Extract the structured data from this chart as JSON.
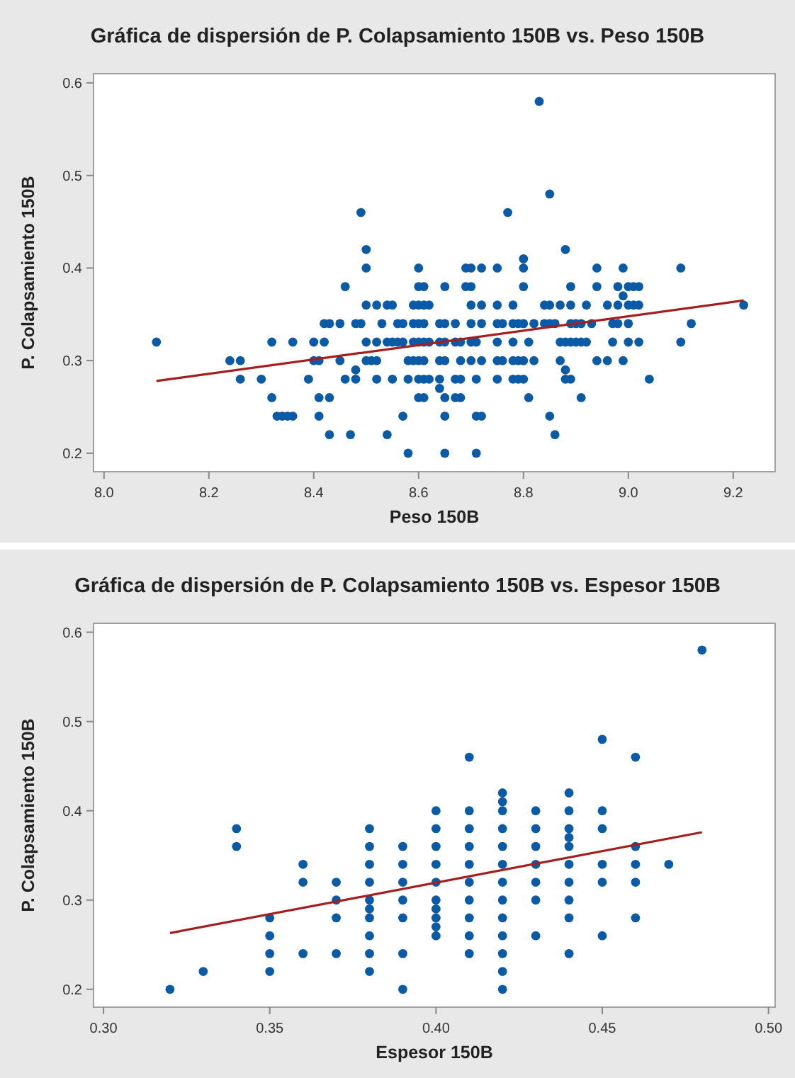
{
  "chart_data": [
    {
      "type": "scatter",
      "title": "Gráfica de dispersión de P. Colapsamiento 150B vs. Peso 150B",
      "xlabel": "Peso 150B",
      "ylabel": "P. Colapsamiento 150B",
      "xlim": [
        7.98,
        9.28
      ],
      "ylim": [
        0.18,
        0.61
      ],
      "xticks": [
        {
          "value": 8,
          "label": "8.0"
        },
        {
          "value": 8.2,
          "label": "8.2"
        },
        {
          "value": 8.4,
          "label": "8.4"
        },
        {
          "value": 8.6,
          "label": "8.6"
        },
        {
          "value": 8.8,
          "label": "8.8"
        },
        {
          "value": 9,
          "label": "9.0"
        },
        {
          "value": 9.2,
          "label": "9.2"
        }
      ],
      "yticks": [
        0.2,
        0.3,
        0.4,
        0.5,
        0.6
      ],
      "series": [
        {
          "color": "#0b5aa5",
          "marker": "circle",
          "x": [
            8.1,
            8.24,
            8.26,
            8.26,
            8.3,
            8.32,
            8.32,
            8.33,
            8.34,
            8.35,
            8.36,
            8.36,
            8.39,
            8.4,
            8.4,
            8.41,
            8.41,
            8.41,
            8.42,
            8.42,
            8.43,
            8.43,
            8.43,
            8.45,
            8.45,
            8.46,
            8.46,
            8.47,
            8.48,
            8.48,
            8.48,
            8.49,
            8.49,
            8.5,
            8.5,
            8.5,
            8.5,
            8.5,
            8.51,
            8.52,
            8.52,
            8.52,
            8.52,
            8.53,
            8.54,
            8.54,
            8.54,
            8.55,
            8.55,
            8.55,
            8.56,
            8.56,
            8.57,
            8.57,
            8.57,
            8.58,
            8.58,
            8.58,
            8.59,
            8.59,
            8.59,
            8.59,
            8.6,
            8.6,
            8.6,
            8.6,
            8.6,
            8.6,
            8.6,
            8.6,
            8.61,
            8.61,
            8.61,
            8.61,
            8.61,
            8.61,
            8.61,
            8.62,
            8.62,
            8.62,
            8.64,
            8.64,
            8.64,
            8.64,
            8.64,
            8.65,
            8.65,
            8.65,
            8.65,
            8.65,
            8.65,
            8.65,
            8.67,
            8.67,
            8.67,
            8.67,
            8.68,
            8.68,
            8.68,
            8.68,
            8.69,
            8.69,
            8.7,
            8.7,
            8.7,
            8.7,
            8.7,
            8.7,
            8.71,
            8.71,
            8.71,
            8.71,
            8.72,
            8.72,
            8.72,
            8.72,
            8.72,
            8.75,
            8.75,
            8.75,
            8.75,
            8.75,
            8.75,
            8.76,
            8.76,
            8.77,
            8.78,
            8.78,
            8.78,
            8.78,
            8.78,
            8.79,
            8.79,
            8.79,
            8.8,
            8.8,
            8.8,
            8.8,
            8.8,
            8.8,
            8.81,
            8.81,
            8.82,
            8.82,
            8.83,
            8.84,
            8.84,
            8.85,
            8.85,
            8.85,
            8.85,
            8.86,
            8.86,
            8.87,
            8.87,
            8.87,
            8.88,
            8.88,
            8.88,
            8.88,
            8.89,
            8.89,
            8.89,
            8.89,
            8.89,
            8.9,
            8.9,
            8.91,
            8.91,
            8.91,
            8.92,
            8.92,
            8.93,
            8.94,
            8.94,
            8.94,
            8.96,
            8.96,
            8.97,
            8.97,
            8.98,
            8.98,
            8.98,
            8.99,
            8.99,
            8.99,
            9,
            9,
            9,
            9,
            9.01,
            9.01,
            9.02,
            9.02,
            9.02,
            9.04,
            9.1,
            9.1,
            9.12,
            9.22
          ],
          "values": [
            0.32,
            0.3,
            0.3,
            0.28,
            0.28,
            0.32,
            0.26,
            0.24,
            0.24,
            0.24,
            0.24,
            0.32,
            0.28,
            0.32,
            0.3,
            0.3,
            0.26,
            0.24,
            0.32,
            0.34,
            0.34,
            0.26,
            0.22,
            0.34,
            0.3,
            0.38,
            0.28,
            0.22,
            0.34,
            0.29,
            0.28,
            0.34,
            0.46,
            0.42,
            0.4,
            0.36,
            0.32,
            0.3,
            0.3,
            0.36,
            0.32,
            0.3,
            0.28,
            0.34,
            0.36,
            0.32,
            0.22,
            0.36,
            0.32,
            0.28,
            0.34,
            0.32,
            0.34,
            0.32,
            0.24,
            0.3,
            0.28,
            0.2,
            0.36,
            0.34,
            0.32,
            0.3,
            0.4,
            0.38,
            0.36,
            0.34,
            0.32,
            0.3,
            0.28,
            0.26,
            0.38,
            0.36,
            0.34,
            0.32,
            0.3,
            0.28,
            0.26,
            0.36,
            0.32,
            0.28,
            0.34,
            0.32,
            0.3,
            0.28,
            0.27,
            0.38,
            0.34,
            0.32,
            0.3,
            0.26,
            0.24,
            0.2,
            0.34,
            0.32,
            0.28,
            0.26,
            0.32,
            0.3,
            0.28,
            0.26,
            0.4,
            0.38,
            0.4,
            0.38,
            0.36,
            0.34,
            0.32,
            0.3,
            0.32,
            0.28,
            0.24,
            0.2,
            0.4,
            0.36,
            0.34,
            0.3,
            0.24,
            0.4,
            0.36,
            0.34,
            0.32,
            0.3,
            0.28,
            0.34,
            0.3,
            0.46,
            0.36,
            0.34,
            0.32,
            0.3,
            0.28,
            0.34,
            0.3,
            0.28,
            0.41,
            0.4,
            0.38,
            0.34,
            0.3,
            0.28,
            0.32,
            0.26,
            0.34,
            0.3,
            0.58,
            0.36,
            0.34,
            0.48,
            0.36,
            0.34,
            0.24,
            0.22,
            0.34,
            0.36,
            0.32,
            0.3,
            0.42,
            0.32,
            0.29,
            0.28,
            0.38,
            0.36,
            0.34,
            0.32,
            0.28,
            0.34,
            0.32,
            0.34,
            0.32,
            0.26,
            0.36,
            0.32,
            0.34,
            0.4,
            0.38,
            0.3,
            0.36,
            0.3,
            0.34,
            0.32,
            0.38,
            0.36,
            0.34,
            0.4,
            0.37,
            0.3,
            0.38,
            0.36,
            0.34,
            0.32,
            0.38,
            0.36,
            0.38,
            0.36,
            0.32,
            0.28,
            0.4,
            0.32,
            0.34,
            0.36
          ]
        },
        {
          "type": "line",
          "color": "#a51d1d",
          "marker": "none",
          "line_style": "solid",
          "x": [
            8.1,
            9.22
          ],
          "values": [
            0.278,
            0.365
          ]
        }
      ]
    },
    {
      "type": "scatter",
      "title": "Gráfica de dispersión de P. Colapsamiento 150B vs. Espesor 150B",
      "xlabel": "Espesor 150B",
      "ylabel": "P. Colapsamiento 150B",
      "xlim": [
        0.297,
        0.502
      ],
      "ylim": [
        0.18,
        0.61
      ],
      "xticks": [
        {
          "value": 0.3,
          "label": "0.30"
        },
        {
          "value": 0.35,
          "label": "0.35"
        },
        {
          "value": 0.4,
          "label": "0.40"
        },
        {
          "value": 0.45,
          "label": "0.45"
        },
        {
          "value": 0.5,
          "label": "0.50"
        }
      ],
      "yticks": [
        0.2,
        0.3,
        0.4,
        0.5,
        0.6
      ],
      "series": [
        {
          "color": "#0b5aa5",
          "marker": "circle",
          "x": [
            0.32,
            0.33,
            0.34,
            0.34,
            0.35,
            0.35,
            0.35,
            0.35,
            0.36,
            0.36,
            0.36,
            0.37,
            0.37,
            0.37,
            0.37,
            0.38,
            0.38,
            0.38,
            0.38,
            0.38,
            0.38,
            0.38,
            0.38,
            0.38,
            0.38,
            0.39,
            0.39,
            0.39,
            0.39,
            0.39,
            0.39,
            0.39,
            0.4,
            0.4,
            0.4,
            0.4,
            0.4,
            0.4,
            0.4,
            0.4,
            0.4,
            0.4,
            0.41,
            0.41,
            0.41,
            0.41,
            0.41,
            0.41,
            0.41,
            0.41,
            0.41,
            0.41,
            0.42,
            0.42,
            0.42,
            0.42,
            0.42,
            0.42,
            0.42,
            0.42,
            0.42,
            0.42,
            0.42,
            0.42,
            0.42,
            0.43,
            0.43,
            0.43,
            0.43,
            0.43,
            0.43,
            0.43,
            0.44,
            0.44,
            0.44,
            0.44,
            0.44,
            0.44,
            0.44,
            0.44,
            0.44,
            0.44,
            0.45,
            0.45,
            0.45,
            0.45,
            0.45,
            0.45,
            0.46,
            0.46,
            0.46,
            0.46,
            0.46,
            0.47,
            0.48
          ],
          "values": [
            0.2,
            0.22,
            0.38,
            0.36,
            0.28,
            0.26,
            0.24,
            0.22,
            0.34,
            0.32,
            0.24,
            0.32,
            0.3,
            0.28,
            0.24,
            0.38,
            0.36,
            0.34,
            0.32,
            0.3,
            0.29,
            0.28,
            0.26,
            0.24,
            0.22,
            0.36,
            0.34,
            0.32,
            0.3,
            0.28,
            0.24,
            0.2,
            0.4,
            0.38,
            0.36,
            0.34,
            0.32,
            0.3,
            0.29,
            0.28,
            0.27,
            0.26,
            0.46,
            0.4,
            0.38,
            0.36,
            0.34,
            0.32,
            0.3,
            0.28,
            0.26,
            0.24,
            0.42,
            0.41,
            0.4,
            0.38,
            0.36,
            0.34,
            0.32,
            0.3,
            0.28,
            0.26,
            0.24,
            0.22,
            0.2,
            0.4,
            0.38,
            0.36,
            0.34,
            0.32,
            0.3,
            0.26,
            0.42,
            0.4,
            0.38,
            0.37,
            0.36,
            0.34,
            0.32,
            0.3,
            0.28,
            0.24,
            0.48,
            0.4,
            0.38,
            0.34,
            0.32,
            0.26,
            0.46,
            0.36,
            0.34,
            0.32,
            0.28,
            0.34,
            0.58
          ]
        },
        {
          "type": "line",
          "color": "#a51d1d",
          "marker": "none",
          "line_style": "solid",
          "x": [
            0.32,
            0.48
          ],
          "values": [
            0.263,
            0.376
          ]
        }
      ]
    }
  ]
}
